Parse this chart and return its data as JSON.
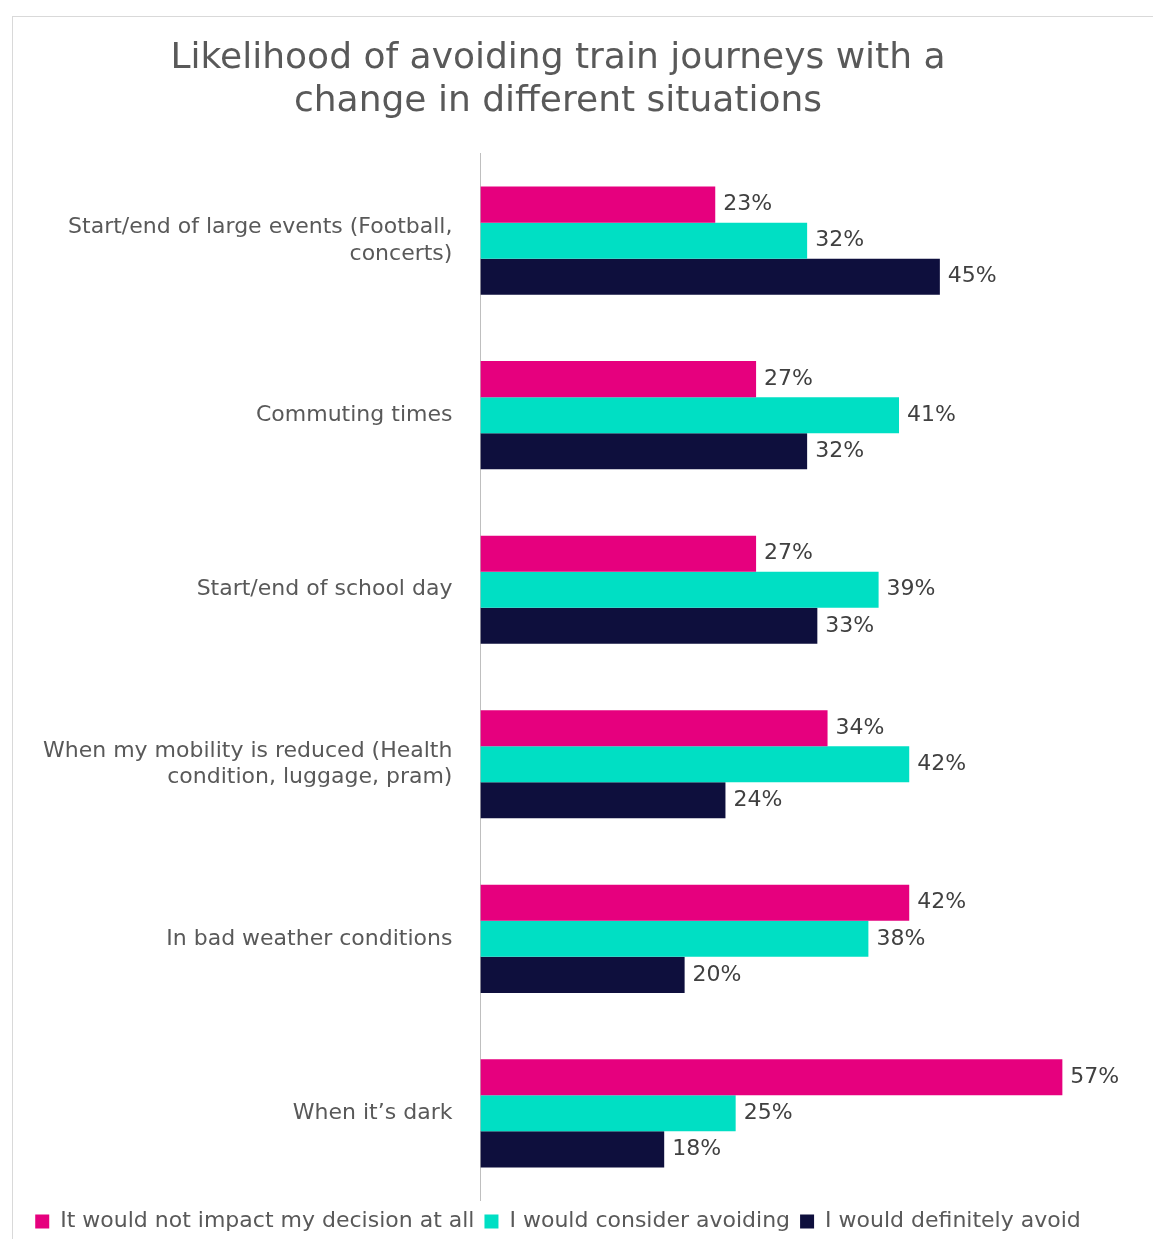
{
  "chart_data": {
    "type": "bar",
    "orientation": "horizontal",
    "title": "Likelihood of avoiding train journeys with a change in different situations",
    "categories": [
      "Start/end of large events (Football, concerts)",
      "Commuting times",
      "Start/end of school day",
      "When my mobility is reduced (Health condition, luggage, pram)",
      "In bad weather conditions",
      "When it’s dark"
    ],
    "series": [
      {
        "name": "It would not impact my decision at all",
        "color": "#e6007e",
        "values": [
          23,
          27,
          27,
          34,
          42,
          57
        ],
        "value_labels": [
          "23%",
          "27%",
          "27%",
          "34%",
          "42%",
          "57%"
        ]
      },
      {
        "name": "I would consider avoiding",
        "color": "#00dfc4",
        "values": [
          32,
          41,
          39,
          42,
          38,
          25
        ],
        "value_labels": [
          "32%",
          "41%",
          "39%",
          "42%",
          "38%",
          "25%"
        ]
      },
      {
        "name": "I would definitely avoid",
        "color": "#0e0f3d",
        "values": [
          45,
          32,
          33,
          24,
          20,
          18
        ],
        "value_labels": [
          "45%",
          "32%",
          "33%",
          "24%",
          "20%",
          "18%"
        ]
      }
    ],
    "legend": "bottom"
  }
}
